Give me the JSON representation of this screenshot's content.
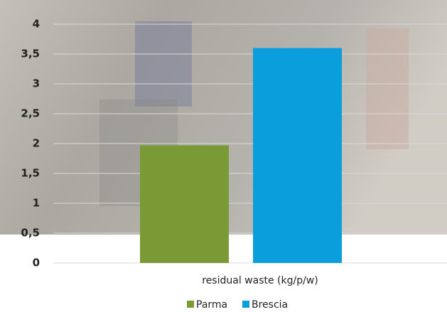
{
  "chart_data": {
    "type": "bar",
    "categories": [
      "residual waste (kg/p/w)"
    ],
    "series": [
      {
        "name": "Parma",
        "color": "#7a9a35",
        "values": [
          1.97
        ]
      },
      {
        "name": "Brescia",
        "color": "#0a9fdc",
        "values": [
          3.6
        ]
      }
    ],
    "ylim": [
      0,
      4
    ],
    "yticks": [
      0,
      {
        "value": 0.5,
        "label": "0,5"
      },
      1,
      {
        "value": 1.5,
        "label": "1,5"
      },
      2,
      {
        "value": 2.5,
        "label": "2,5"
      },
      3,
      {
        "value": 3.5,
        "label": "3,5"
      },
      4
    ],
    "grid": true
  }
}
